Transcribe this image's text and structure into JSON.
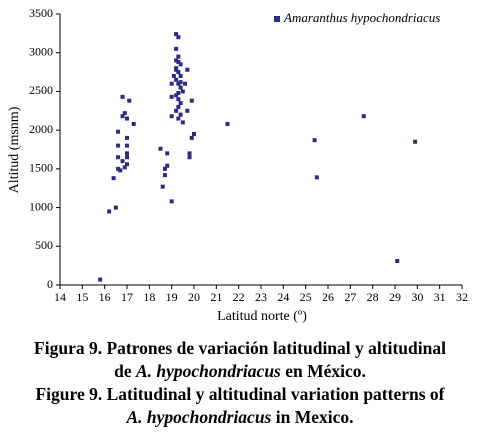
{
  "chart_data": {
    "type": "scatter",
    "x_label": "Latitud norte (º)",
    "y_label": "Altitud (msnm)",
    "xlim": [
      14,
      32
    ],
    "xticks": [
      14,
      15,
      16,
      17,
      18,
      19,
      20,
      21,
      22,
      23,
      24,
      25,
      26,
      27,
      28,
      29,
      30,
      31,
      32
    ],
    "ylim": [
      0,
      3500
    ],
    "yticks": [
      0,
      500,
      1000,
      1500,
      2000,
      2500,
      3000,
      3500
    ],
    "grid": false,
    "legend_position": "top-right",
    "series": [
      {
        "name": "Amaranthus hypochondriacus",
        "color": "#2b2b7f",
        "x": [
          15.8,
          16.2,
          16.5,
          16.4,
          16.6,
          16.7,
          16.6,
          16.8,
          16.6,
          16.6,
          16.8,
          16.8,
          16.9,
          17.0,
          17.0,
          17.0,
          17.0,
          17.0,
          16.9,
          17.1,
          17.0,
          17.3,
          18.5,
          18.6,
          18.7,
          18.7,
          18.8,
          18.8,
          19.0,
          19.0,
          19.0,
          19.0,
          19.1,
          19.2,
          19.3,
          19.2,
          19.3,
          19.2,
          19.4,
          19.2,
          19.3,
          19.4,
          19.2,
          19.3,
          19.4,
          19.5,
          19.2,
          19.3,
          19.4,
          19.3,
          19.2,
          19.4,
          19.3,
          19.5,
          19.3,
          19.4,
          19.2,
          19.3,
          19.7,
          19.7,
          19.8,
          19.8,
          19.9,
          20.0,
          19.9,
          19.6,
          21.5,
          25.4,
          25.5,
          27.6,
          29.1,
          29.9
        ],
        "values": [
          70,
          950,
          1000,
          1380,
          1500,
          1480,
          1650,
          1600,
          1800,
          1980,
          2180,
          2430,
          1520,
          1560,
          1650,
          1800,
          1900,
          1700,
          2220,
          2380,
          2150,
          2080,
          1760,
          1270,
          1420,
          1500,
          1700,
          1540,
          1080,
          2180,
          2430,
          2600,
          2700,
          3240,
          3200,
          3050,
          2950,
          2900,
          2850,
          2800,
          2750,
          2700,
          2650,
          2600,
          2550,
          2500,
          2450,
          2400,
          2350,
          2300,
          2250,
          2200,
          2150,
          2100,
          2480,
          2620,
          2780,
          2880,
          2780,
          2250,
          1650,
          1700,
          1900,
          1950,
          2380,
          2600,
          2080,
          1870,
          1390,
          2180,
          310,
          1850
        ]
      }
    ]
  },
  "caption": {
    "lines": [
      [
        {
          "text": "Figura 9. Patrones de variación latitudinal y altitudinal",
          "italic": false
        }
      ],
      [
        {
          "text": "de ",
          "italic": false
        },
        {
          "text": "A. hypochondriacus",
          "italic": true
        },
        {
          "text": " en México.",
          "italic": false
        }
      ],
      [
        {
          "text": "Figure 9. Latitudinal y altitudinal variation patterns of",
          "italic": false
        }
      ],
      [
        {
          "text": "A. hypochondriacus",
          "italic": true
        },
        {
          "text": " in Mexico.",
          "italic": false
        }
      ]
    ]
  }
}
